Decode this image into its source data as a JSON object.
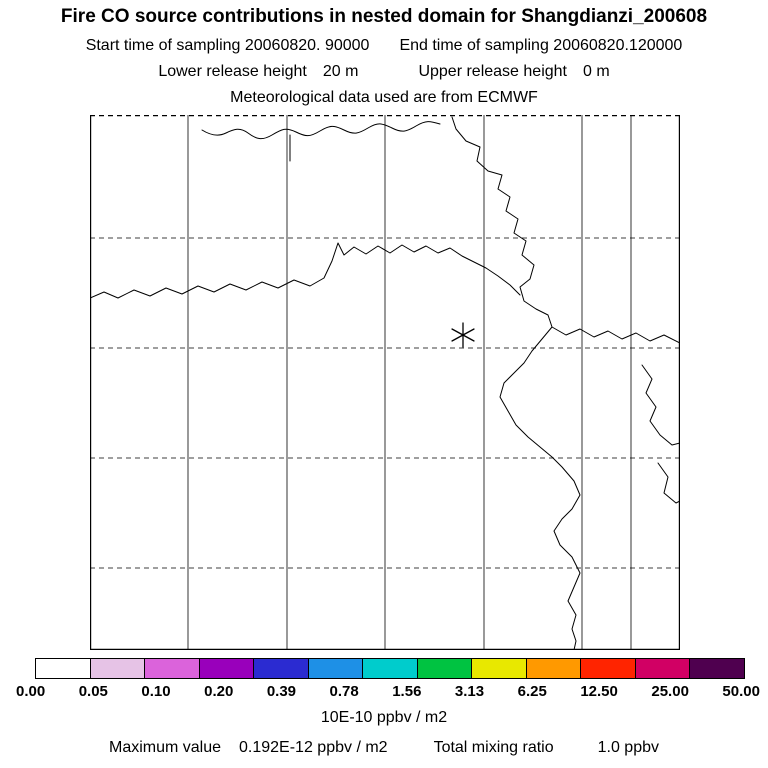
{
  "header": {
    "title": "Fire CO source contributions in nested domain for Shangdianzi_200608",
    "start_time": "Start time of sampling 20060820. 90000",
    "end_time": "End time of sampling 20060820.120000",
    "lower_release_label": "Lower release height",
    "lower_release_value": "20 m",
    "upper_release_label": "Upper release height",
    "upper_release_value": "0 m",
    "met_data": "Meteorological data used are from ECMWF"
  },
  "colorbar": {
    "levels": [
      "0.00",
      "0.05",
      "0.10",
      "0.20",
      "0.39",
      "0.78",
      "1.56",
      "3.13",
      "6.25",
      "12.50",
      "25.00",
      "50.00"
    ],
    "colors": [
      "#ffffff",
      "#e6c3e6",
      "#db63db",
      "#9900bb",
      "#2b2bd1",
      "#1e90e6",
      "#00cccc",
      "#00c341",
      "#e8e800",
      "#ff9900",
      "#ff2400",
      "#d10064",
      "#4f004f"
    ],
    "units": "10E-10 ppbv / m2"
  },
  "footer": {
    "max_value_label": "Maximum value",
    "max_value": "0.192E-12 ppbv / m2",
    "total_mixing_label": "Total mixing ratio",
    "total_mixing_value": "1.0 ppbv"
  },
  "chart_data": {
    "type": "heatmap",
    "title": "Fire CO source contributions in nested domain for Shangdianzi_200608",
    "subtitle_lines": [
      "Start time of sampling 20060820. 90000   End time of sampling 20060820.120000",
      "Lower release height 20 m   Upper release height 0 m",
      "Meteorological data used are from ECMWF"
    ],
    "colorbar_levels": [
      0.0,
      0.05,
      0.1,
      0.2,
      0.39,
      0.78,
      1.56,
      3.13,
      6.25,
      12.5,
      25.0,
      50.0
    ],
    "colorbar_units": "10E-10 ppbv / m2",
    "max_value": "0.192E-12 ppbv / m2",
    "total_mixing_ratio": "1.0 ppbv",
    "values_visible": "no shaded contribution cells visible; map interior renders blank above coastlines and grid",
    "station_marker": {
      "symbol": "asterisk",
      "map_x_fraction": 0.632,
      "map_y_fraction": 0.411
    }
  }
}
